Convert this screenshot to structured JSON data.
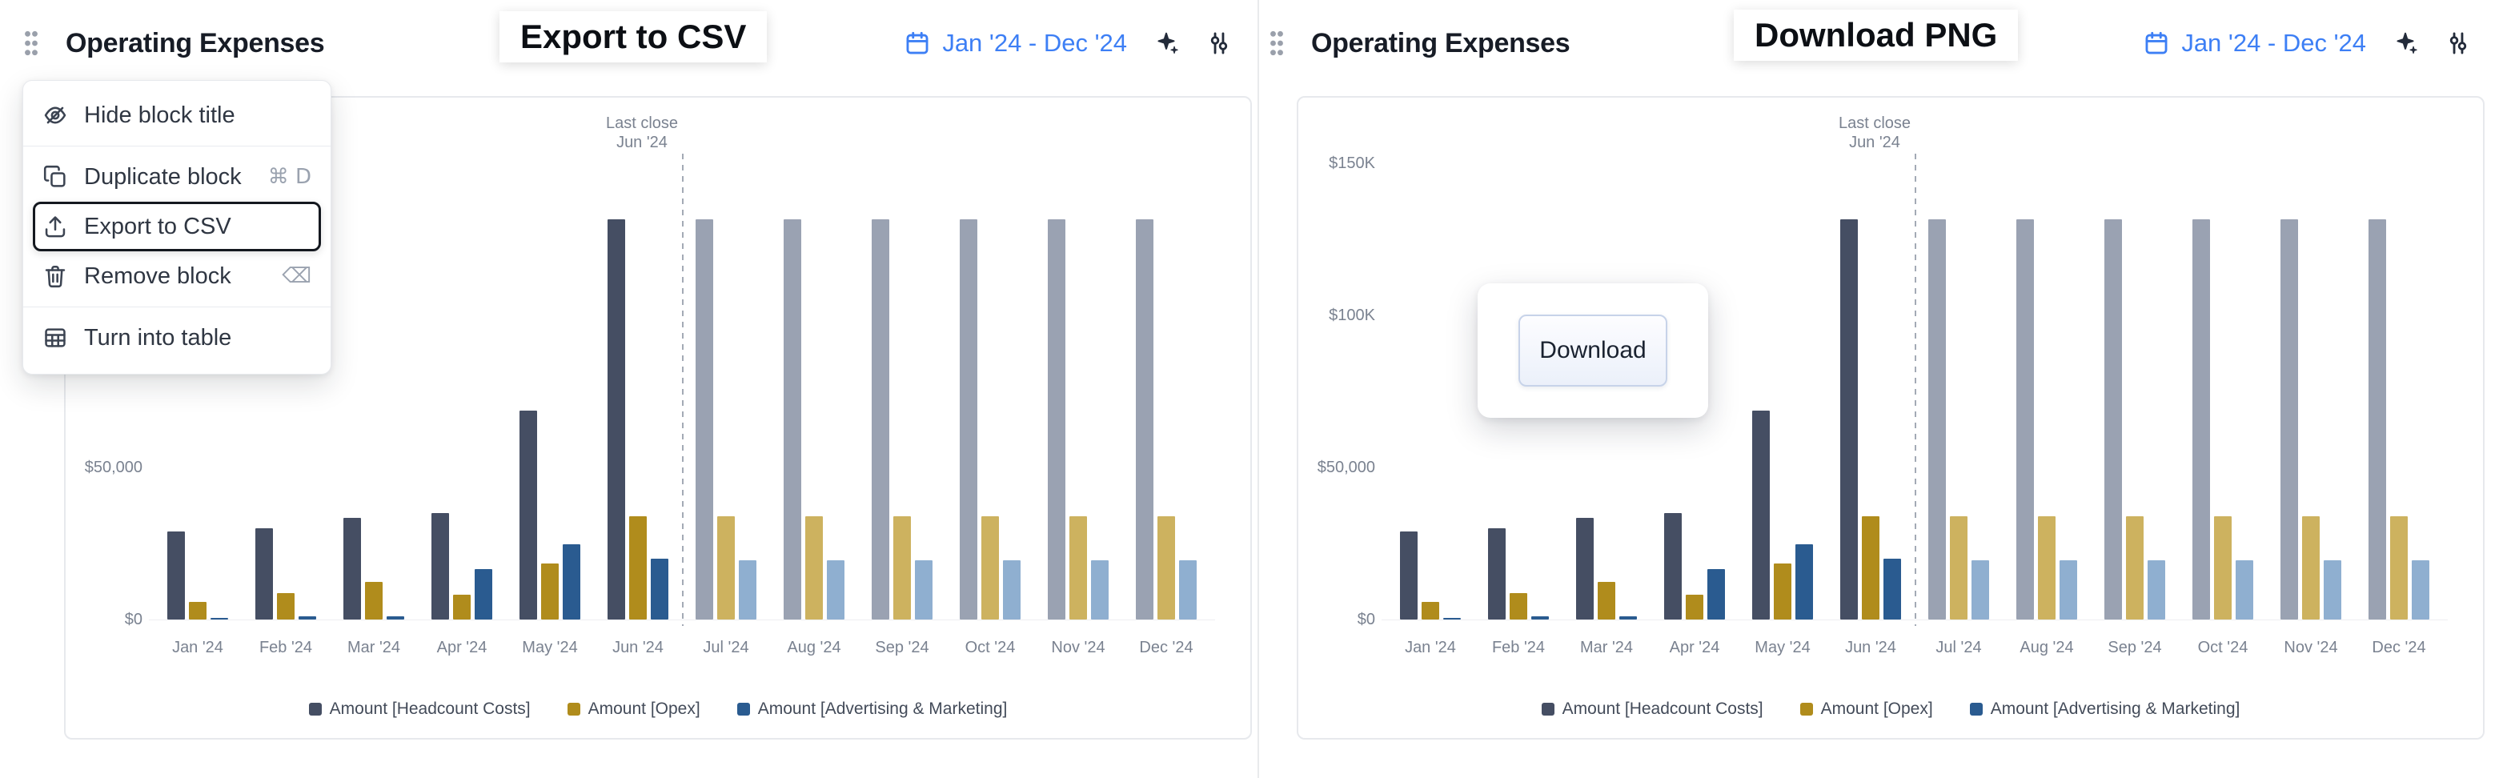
{
  "header": {
    "title": "Operating Expenses",
    "date_range": "Jan '24 - Dec '24",
    "accent_color": "#3D7FF5",
    "icons": [
      "grip-icon",
      "calendar-icon",
      "sparkles-icon",
      "sliders-icon"
    ]
  },
  "callouts": {
    "left_label": "Export to CSV",
    "right_label": "Download PNG"
  },
  "menu": {
    "items": [
      {
        "type": "item",
        "icon": "eye-off-icon",
        "label": "Hide block title",
        "shortcut": ""
      },
      {
        "type": "divider"
      },
      {
        "type": "item",
        "icon": "copy-icon",
        "label": "Duplicate block",
        "shortcut": "⌘ D"
      },
      {
        "type": "item",
        "icon": "export-icon",
        "label": "Export to CSV",
        "shortcut": "",
        "highlighted": true
      },
      {
        "type": "item",
        "icon": "trash-icon",
        "label": "Remove block",
        "shortcut": "⌫"
      },
      {
        "type": "divider"
      },
      {
        "type": "item",
        "icon": "table-icon",
        "label": "Turn into table",
        "shortcut": ""
      }
    ]
  },
  "modal": {
    "download_button_label": "Download"
  },
  "chart_data": {
    "type": "bar",
    "title": "Operating Expenses",
    "categories": [
      "Jan '24",
      "Feb '24",
      "Mar '24",
      "Apr '24",
      "May '24",
      "Jun '24",
      "Jul '24",
      "Aug '24",
      "Sep '24",
      "Oct '24",
      "Nov '24",
      "Dec '24"
    ],
    "series": [
      {
        "name": "Amount [Headcount Costs]",
        "color": "#454E63",
        "forecast_color": "#9AA2B2",
        "values": [
          29000,
          30100,
          33300,
          34900,
          68800,
          131700,
          131700,
          131700,
          131700,
          131700,
          131700,
          131700
        ]
      },
      {
        "name": "Amount [Opex]",
        "color": "#B08C1C",
        "forecast_color": "#CDB25F",
        "values": [
          5900,
          8600,
          12400,
          8100,
          18300,
          33900,
          33900,
          33900,
          33900,
          33900,
          33900,
          33900
        ]
      },
      {
        "name": "Amount [Advertising & Marketing]",
        "color": "#2A5B90",
        "forecast_color": "#8FAFD0",
        "values": [
          500,
          1100,
          1100,
          16700,
          24700,
          19900,
          19400,
          19400,
          19400,
          19400,
          19400,
          19400
        ]
      }
    ],
    "forecast_start_index": 6,
    "annotation": {
      "line1": "Last close",
      "line2": "Jun '24",
      "after_category": "Jun '24"
    },
    "y_ticks": [
      {
        "value": 0,
        "label": "$0"
      },
      {
        "value": 50000,
        "label": "$50,000"
      },
      {
        "value": 100000,
        "label": "$100K"
      },
      {
        "value": 150000,
        "label": "$150K"
      }
    ],
    "ylim": [
      0,
      170000
    ],
    "xlabel": "",
    "ylabel": "",
    "grid": false,
    "legend_position": "bottom"
  }
}
